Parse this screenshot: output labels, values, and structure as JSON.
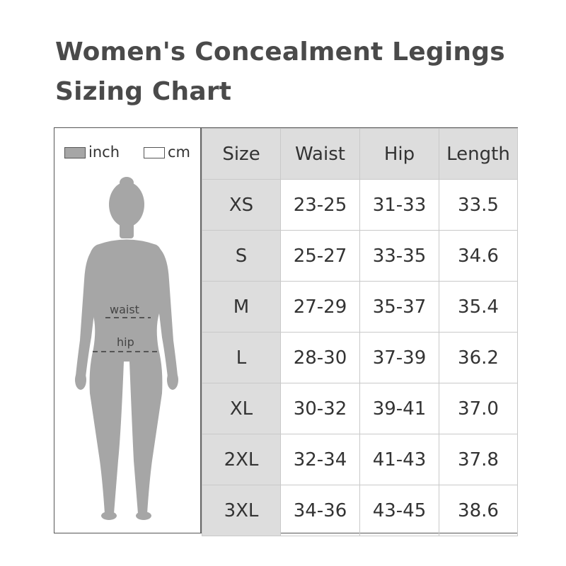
{
  "title": {
    "line1": "Women's Concealment Legings",
    "line2": "Sizing Chart"
  },
  "legend": {
    "inch_label": "inch",
    "cm_label": "cm",
    "inch_color": "#a6a6a6",
    "cm_color": "#ffffff"
  },
  "figure": {
    "waist_label": "waist",
    "hip_label": "hip",
    "body_color": "#a6a6a6"
  },
  "table": {
    "headers": [
      "Size",
      "Waist",
      "Hip",
      "Length"
    ],
    "rows": [
      [
        "XS",
        "23-25",
        "31-33",
        "33.5"
      ],
      [
        "S",
        "25-27",
        "33-35",
        "34.6"
      ],
      [
        "M",
        "27-29",
        "35-37",
        "35.4"
      ],
      [
        "L",
        "28-30",
        "37-39",
        "36.2"
      ],
      [
        "XL",
        "30-32",
        "39-41",
        "37.0"
      ],
      [
        "2XL",
        "32-34",
        "41-43",
        "37.8"
      ],
      [
        "3XL",
        "34-36",
        "43-45",
        "38.6"
      ]
    ]
  }
}
